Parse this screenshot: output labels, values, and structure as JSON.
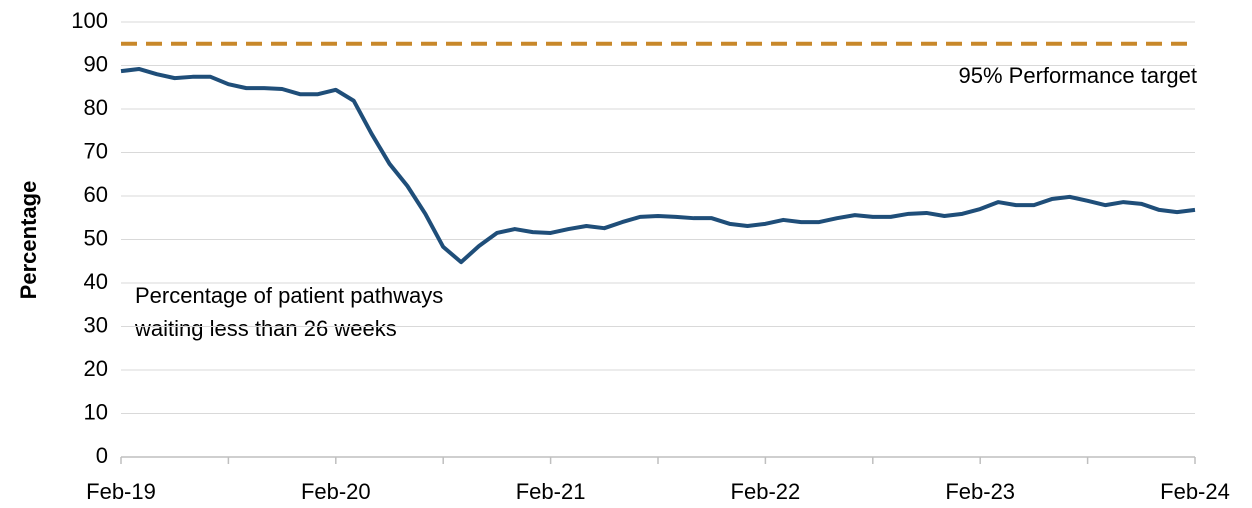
{
  "chart_data": {
    "type": "line",
    "y_label": "Percentage",
    "categories": [
      "Feb-19",
      null,
      null,
      null,
      null,
      null,
      null,
      null,
      null,
      null,
      null,
      null,
      "Feb-20",
      null,
      null,
      null,
      null,
      null,
      null,
      null,
      null,
      null,
      null,
      null,
      "Feb-21",
      null,
      null,
      null,
      null,
      null,
      null,
      null,
      null,
      null,
      null,
      null,
      "Feb-22",
      null,
      null,
      null,
      null,
      null,
      null,
      null,
      null,
      null,
      null,
      null,
      "Feb-23",
      null,
      null,
      null,
      null,
      null,
      null,
      null,
      null,
      null,
      null,
      null,
      "Feb-24"
    ],
    "series": [
      {
        "color": "#1f4e79",
        "values": [
          88.7,
          89.2,
          88,
          87.1,
          87.4,
          87.4,
          85.7,
          84.8,
          84.8,
          84.6,
          83.4,
          83.4,
          84.4,
          81.9,
          74.3,
          67.4,
          62.3,
          55.9,
          48.3,
          44.8,
          48.5,
          51.5,
          52.4,
          51.7,
          51.5,
          52.4,
          53.1,
          52.6,
          54,
          55.2,
          55.4,
          55.2,
          54.9,
          54.9,
          53.6,
          53.1,
          53.6,
          54.5,
          54,
          54,
          54.9,
          55.6,
          55.2,
          55.2,
          55.9,
          56.1,
          55.4,
          55.9,
          57,
          58.6,
          57.9,
          57.9,
          59.3,
          59.8,
          58.9,
          57.9,
          58.6,
          58.2,
          56.8,
          56.3,
          56.8
        ]
      }
    ],
    "target": {
      "name": "95% Performance target",
      "value": 95,
      "color": "#c8882a",
      "dashed": true
    },
    "annotations": [
      {
        "lines": [
          "Percentage of patient pathways",
          "waiting less than 26 weeks"
        ]
      }
    ],
    "ylim": [
      0,
      100
    ],
    "yticks": [
      0,
      10,
      20,
      30,
      40,
      50,
      60,
      70,
      80,
      90,
      100
    ],
    "grid": true
  }
}
